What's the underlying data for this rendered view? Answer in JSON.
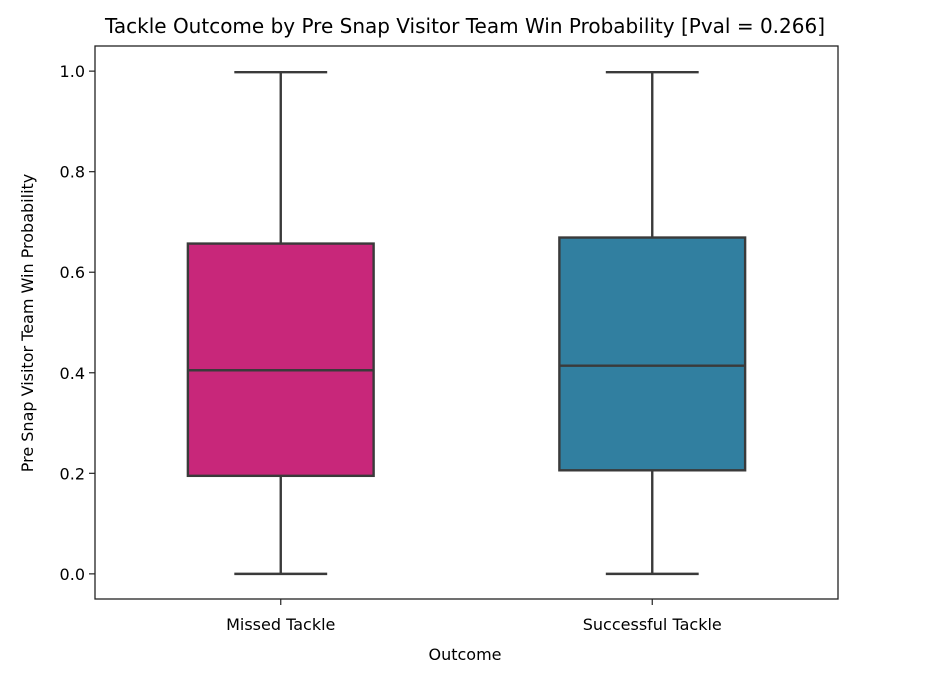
{
  "chart_data": {
    "type": "box",
    "title": "Tackle Outcome by Pre Snap Visitor Team Win Probability [Pval = 0.266]",
    "xlabel": "Outcome",
    "ylabel": "Pre Snap Visitor Team Win Probability",
    "ylim": [
      -0.05,
      1.05
    ],
    "yticks": [
      0.0,
      0.2,
      0.4,
      0.6,
      0.8,
      1.0
    ],
    "ytick_labels": [
      "0.0",
      "0.2",
      "0.4",
      "0.6",
      "0.8",
      "1.0"
    ],
    "categories": [
      "Missed Tackle",
      "Successful Tackle"
    ],
    "boxes": [
      {
        "category": "Missed Tackle",
        "min": 0.0,
        "q1": 0.195,
        "median": 0.405,
        "q3": 0.657,
        "max": 0.998,
        "color": "#C8277A"
      },
      {
        "category": "Successful Tackle",
        "min": 0.0,
        "q1": 0.206,
        "median": 0.414,
        "q3": 0.669,
        "max": 0.998,
        "color": "#317FA0"
      }
    ],
    "grid": false,
    "line_color": "#3a3a3a"
  }
}
